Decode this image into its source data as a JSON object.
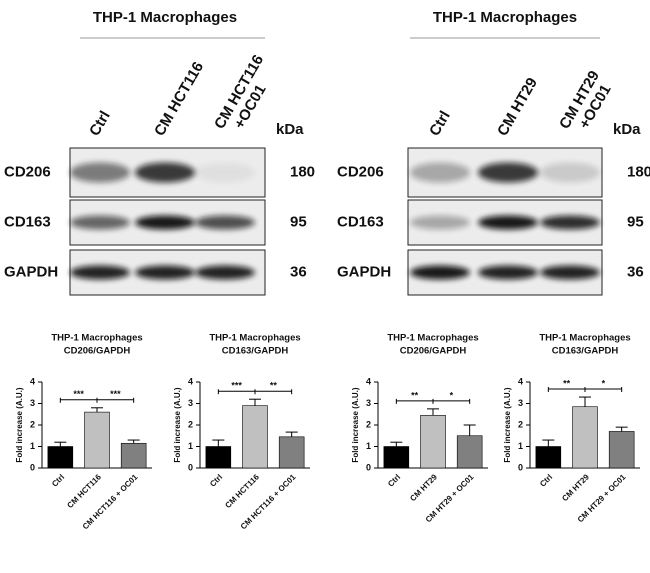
{
  "blots": [
    {
      "title": "THP-1 Macrophages",
      "lanes": [
        [
          "Ctrl"
        ],
        [
          "CM HCT116"
        ],
        [
          "CM HCT116",
          "+OC01"
        ]
      ],
      "kda_label": "kDa",
      "rows": [
        {
          "label": "CD206",
          "kda": 180
        },
        {
          "label": "CD163",
          "kda": 95
        },
        {
          "label": "GAPDH",
          "kda": 36
        }
      ]
    },
    {
      "title": "THP-1 Macrophages",
      "lanes": [
        [
          "Ctrl"
        ],
        [
          "CM HT29"
        ],
        [
          "CM HT29",
          "+OC01"
        ]
      ],
      "kda_label": "kDa",
      "rows": [
        {
          "label": "CD206",
          "kda": 180
        },
        {
          "label": "CD163",
          "kda": 95
        },
        {
          "label": "GAPDH",
          "kda": 36
        }
      ]
    }
  ],
  "chart_data": [
    {
      "type": "bar",
      "title": "THP-1 Macrophages",
      "subtitle": "CD206/GAPDH",
      "y_label": "Fold increase (A.U.)",
      "categories": [
        "Ctrl",
        "CM HCT116",
        "CM HCT116 + OC01"
      ],
      "values": [
        1.0,
        2.6,
        1.15
      ],
      "errors": [
        0.2,
        0.2,
        0.15
      ],
      "colors": [
        "#000000",
        "#c0c0c0",
        "#808080"
      ],
      "ylim": [
        0,
        4
      ],
      "yticks": [
        0,
        1,
        2,
        3,
        4
      ],
      "annotations": [
        "***",
        "***"
      ]
    },
    {
      "type": "bar",
      "title": "THP-1 Macrophages",
      "subtitle": "CD163/GAPDH",
      "y_label": "Fold increase (A.U.)",
      "categories": [
        "Ctrl",
        "CM HCT116",
        "CM HCT116 + OC01"
      ],
      "values": [
        1.0,
        2.9,
        1.45
      ],
      "errors": [
        0.3,
        0.3,
        0.22
      ],
      "colors": [
        "#000000",
        "#c0c0c0",
        "#808080"
      ],
      "ylim": [
        0,
        4
      ],
      "yticks": [
        0,
        1,
        2,
        3,
        4
      ],
      "annotations": [
        "***",
        "**"
      ]
    },
    {
      "type": "bar",
      "title": "THP-1 Macrophages",
      "subtitle": "CD206/GAPDH",
      "y_label": "Fold increase (A.U.)",
      "categories": [
        "Ctrl",
        "CM HT29",
        "CM HT29 + OC01"
      ],
      "values": [
        1.0,
        2.45,
        1.5
      ],
      "errors": [
        0.2,
        0.3,
        0.5
      ],
      "colors": [
        "#000000",
        "#c0c0c0",
        "#808080"
      ],
      "ylim": [
        0,
        4
      ],
      "yticks": [
        0,
        1,
        2,
        3,
        4
      ],
      "annotations": [
        "**",
        "*"
      ]
    },
    {
      "type": "bar",
      "title": "THP-1 Macrophages",
      "subtitle": "CD163/GAPDH",
      "y_label": "Fold increase (A.U.)",
      "categories": [
        "Ctrl",
        "CM HT29",
        "CM HT29 + OC01"
      ],
      "values": [
        1.0,
        2.85,
        1.7
      ],
      "errors": [
        0.3,
        0.45,
        0.2
      ],
      "colors": [
        "#000000",
        "#c0c0c0",
        "#808080"
      ],
      "ylim": [
        0,
        4
      ],
      "yticks": [
        0,
        1,
        2,
        3,
        4
      ],
      "annotations": [
        "**",
        "*"
      ]
    }
  ]
}
